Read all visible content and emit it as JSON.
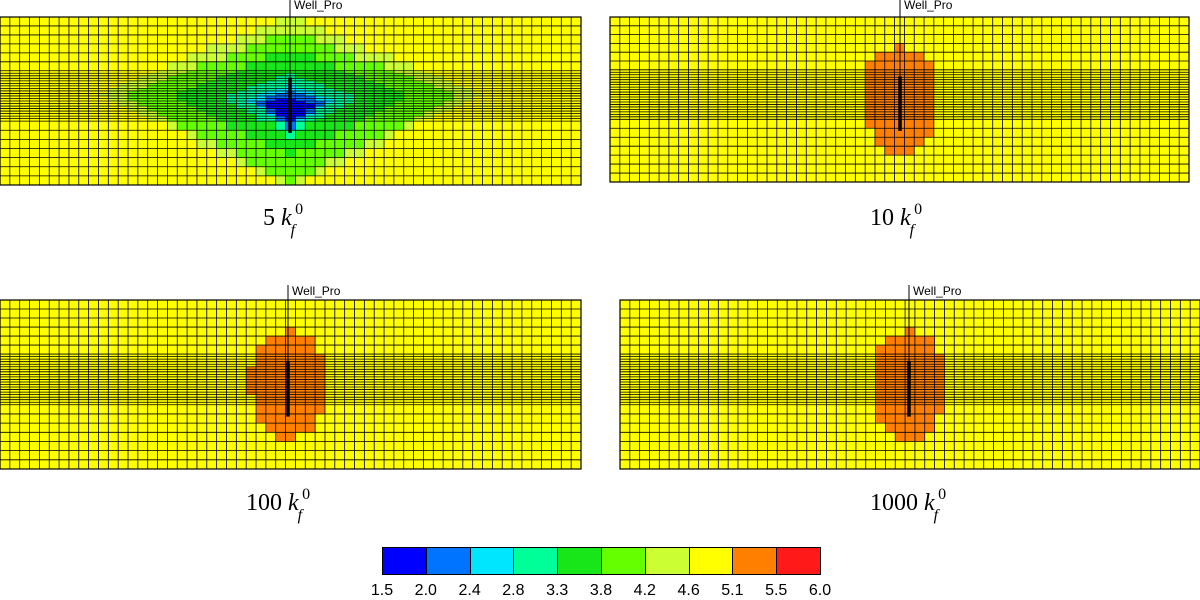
{
  "panels": [
    {
      "id": "p5",
      "well_label": "Well_Pro",
      "caption_number": "5",
      "caption_symbol": "k",
      "caption_sub": "f",
      "caption_sup": "0",
      "fill": "mixed"
    },
    {
      "id": "p10",
      "well_label": "Well_Pro",
      "caption_number": "10",
      "caption_symbol": "k",
      "caption_sub": "f",
      "caption_sup": "0",
      "fill": "orange"
    },
    {
      "id": "p100",
      "well_label": "Well_Pro",
      "caption_number": "100",
      "caption_symbol": "k",
      "caption_sub": "f",
      "caption_sup": "0",
      "fill": "orange"
    },
    {
      "id": "p1000",
      "well_label": "Well_Pro",
      "caption_number": "1000",
      "caption_symbol": "k",
      "caption_sub": "f",
      "caption_sup": "0",
      "fill": "orange"
    }
  ],
  "legend": {
    "ticks": [
      "1.5",
      "2.0",
      "2.4",
      "2.8",
      "3.3",
      "3.8",
      "4.2",
      "4.6",
      "5.1",
      "5.5",
      "6.0"
    ],
    "colors": [
      "#0000ff",
      "#0073ff",
      "#00e6ff",
      "#00ff99",
      "#19e619",
      "#66ff00",
      "#ccff33",
      "#ffff00",
      "#ff7f00",
      "#ff1919"
    ]
  },
  "colors": {
    "background_field": "#ffff00",
    "orange_zone": "#ff7f00",
    "grid_line": "#000000",
    "well_line": "#000000"
  }
}
